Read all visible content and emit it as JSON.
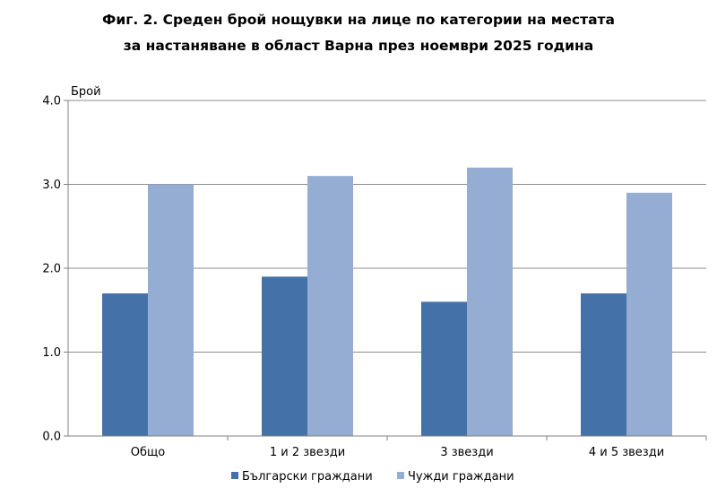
{
  "chart_data": {
    "type": "bar",
    "title_line1": "Фиг. 2. Среден брой нощувки на лице по категории на местата",
    "title_line2": "за настаняване в област Варна през ноември 2025 година",
    "ylabel": "Брой",
    "xlabel": "",
    "ylim": [
      0,
      4
    ],
    "yticks": [
      "0.0",
      "1.0",
      "2.0",
      "3.0",
      "4.0"
    ],
    "categories": [
      "Общо",
      "1 и 2 звезди",
      "3 звезди",
      "4 и 5 звезди"
    ],
    "series": [
      {
        "name": "Български граждани",
        "color": "#4472a8",
        "values": [
          1.7,
          1.9,
          1.6,
          1.7
        ]
      },
      {
        "name": "Чужди граждани",
        "color": "#95acd3",
        "values": [
          3.0,
          3.1,
          3.2,
          2.9
        ]
      }
    ],
    "grid": true,
    "legend_position": "bottom"
  }
}
